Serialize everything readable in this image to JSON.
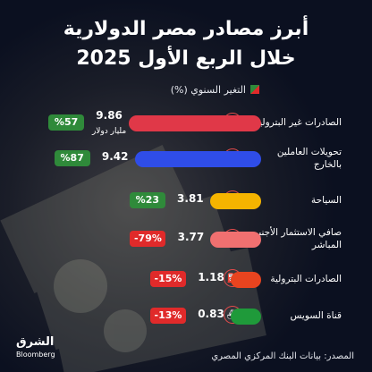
{
  "title_line1": "أبرز مصادر مصر الدولارية",
  "title_line2": "خلال الربع الأول 2025",
  "legend_label": "التغير السنوي (%)",
  "source": "المصدر: بيانات البنك المركزي المصري",
  "brand_main": "الشرق",
  "brand_sub": "Bloomberg",
  "colors": {
    "badge_positive": "#2f8a3a",
    "badge_negative": "#e02a2a",
    "bar_nonoil_exports": "#e03848",
    "bar_remittances": "#2f4de8",
    "bar_tourism": "#f5b400",
    "bar_fdi": "#f07070",
    "bar_oil_exports": "#e8441f",
    "bar_suez": "#1f9a3a",
    "icon_ring": "#e14b4b"
  },
  "rows": [
    {
      "label": "الصادرات غير البترولية",
      "value_text": "9.86",
      "unit_text": "مليار دولار",
      "change_text": "%57",
      "change_sign": "positive",
      "icon": "export-icon"
    },
    {
      "label": "تحويلات العاملين بالخارج",
      "value_text": "9.42",
      "unit_text": "",
      "change_text": "%87",
      "change_sign": "positive",
      "icon": "transfer-icon"
    },
    {
      "label": "السياحة",
      "value_text": "3.81",
      "unit_text": "",
      "change_text": "%23",
      "change_sign": "positive",
      "icon": "tourism-icon"
    },
    {
      "label": "صافي الاستثمار الأجنبي المباشر",
      "value_text": "3.77",
      "unit_text": "",
      "change_text": "-79%",
      "change_sign": "negative",
      "icon": "investment-icon"
    },
    {
      "label": "الصادرات البترولية",
      "value_text": "1.18",
      "unit_text": "",
      "change_text": "-15%",
      "change_sign": "negative",
      "icon": "oil-icon"
    },
    {
      "label": "قناة السويس",
      "value_text": "0.83",
      "unit_text": "",
      "change_text": "-13%",
      "change_sign": "negative",
      "icon": "ship-icon"
    }
  ],
  "chart_data": {
    "type": "bar",
    "orientation": "horizontal",
    "title": "أبرز مصادر مصر الدولارية خلال الربع الأول 2025",
    "categories": [
      "الصادرات غير البترولية",
      "تحويلات العاملين بالخارج",
      "السياحة",
      "صافي الاستثمار الأجنبي المباشر",
      "الصادرات البترولية",
      "قناة السويس"
    ],
    "values": [
      9.86,
      9.42,
      3.81,
      3.77,
      1.18,
      0.83
    ],
    "value_unit": "مليار دولار",
    "annual_change_percent": [
      57,
      87,
      23,
      -79,
      -15,
      -13
    ],
    "legend": [
      "التغير السنوي (%)"
    ],
    "xlim": [
      0,
      10
    ],
    "grid": false
  }
}
